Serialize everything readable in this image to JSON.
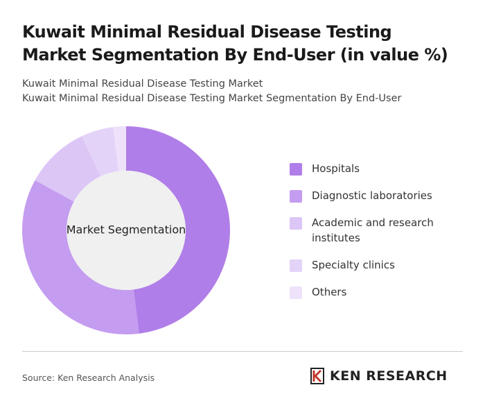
{
  "chart_data": {
    "type": "donut",
    "title": "Kuwait Minimal Residual Disease Testing Market Segmentation By End-User (in value %)",
    "subtitles": [
      "Kuwait Minimal Residual Disease Testing Market",
      "Kuwait Minimal Residual Disease Testing Market Segmentation By End-User"
    ],
    "center_label": "Market Segmentation",
    "categories": [
      "Hospitals",
      "Diagnostic laboratories",
      "Academic and research institutes",
      "Specialty clinics",
      "Others"
    ],
    "values": [
      48,
      35,
      10,
      5,
      2
    ],
    "colors": [
      "#b07ee8",
      "#c49cf0",
      "#dcc6f6",
      "#e4d3f8",
      "#ede2fa"
    ],
    "source": "Source: Ken Research Analysis",
    "logo": "KEN RESEARCH"
  }
}
